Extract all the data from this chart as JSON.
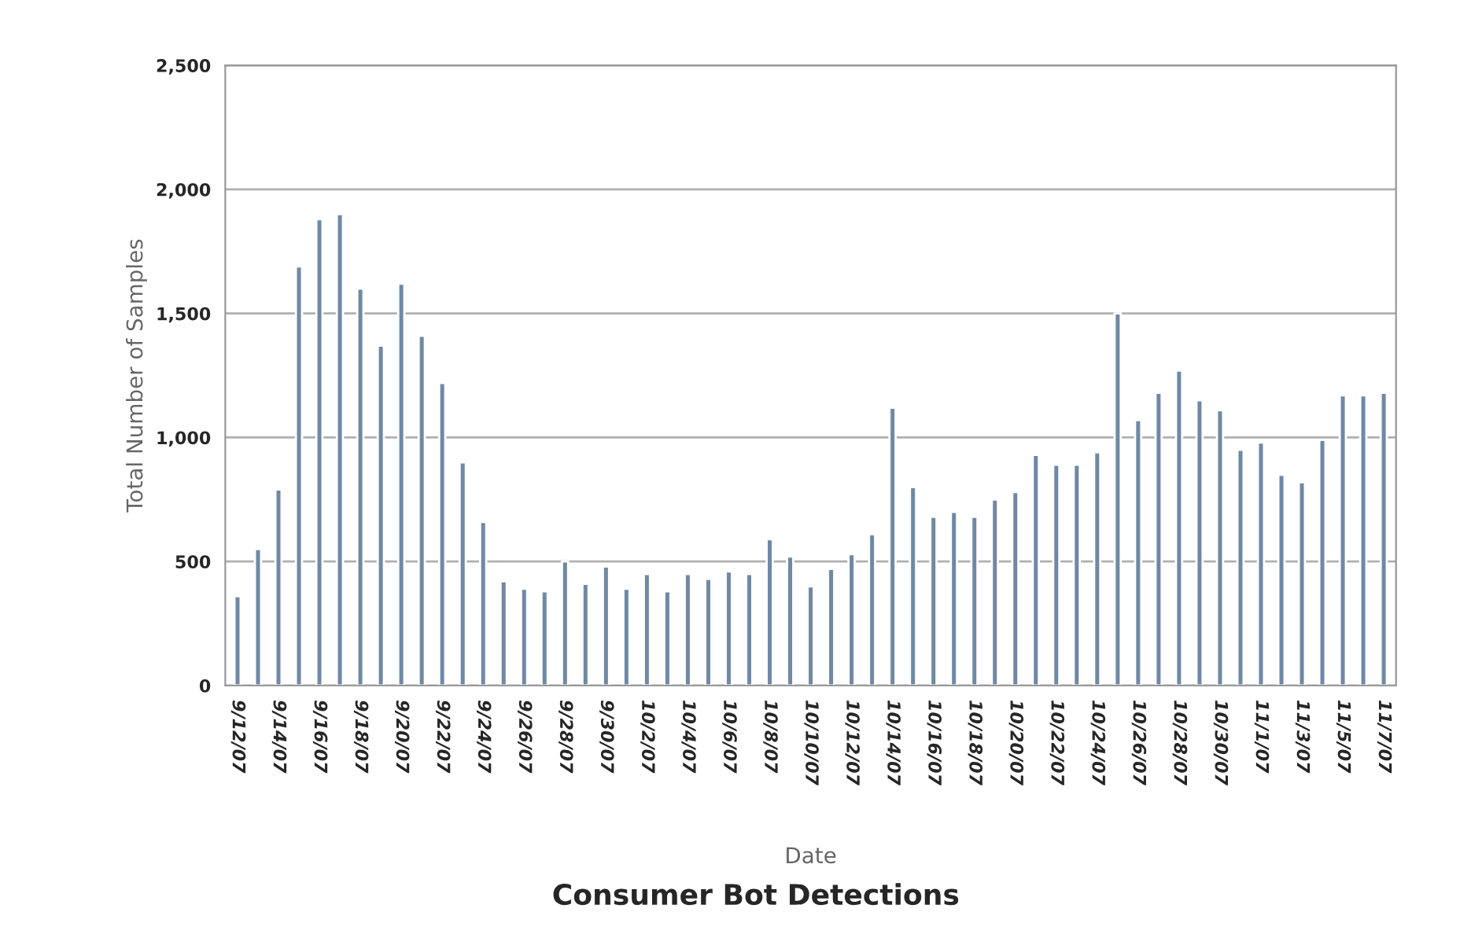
{
  "chart_data": {
    "type": "bar",
    "title": "Consumer Bot Detections",
    "xlabel": "Date",
    "ylabel": "Total Number of Samples",
    "categories": [
      "9/12/07",
      null,
      "9/14/07",
      null,
      "9/16/07",
      null,
      "9/18/07",
      null,
      "9/20/07",
      null,
      "9/22/07",
      null,
      "9/24/07",
      null,
      "9/26/07",
      null,
      "9/28/07",
      null,
      "9/30/07",
      null,
      "10/2/07",
      null,
      "10/4/07",
      null,
      "10/6/07",
      null,
      "10/8/07",
      null,
      "10/10/07",
      null,
      "10/12/07",
      null,
      "10/14/07",
      null,
      "10/16/07",
      null,
      "10/18/07",
      null,
      "10/20/07",
      null,
      "10/22/07",
      null,
      "10/24/07",
      null,
      "10/26/07",
      null,
      "10/28/07",
      null,
      "10/30/07",
      null,
      "11/1/07",
      null,
      "11/3/07",
      null,
      "11/5/07",
      null,
      "11/7/07"
    ],
    "values": [
      360,
      550,
      790,
      1690,
      1880,
      1900,
      1600,
      1370,
      1620,
      1410,
      1220,
      900,
      660,
      420,
      390,
      380,
      500,
      410,
      480,
      390,
      450,
      380,
      450,
      430,
      460,
      450,
      590,
      520,
      400,
      470,
      530,
      610,
      1120,
      800,
      680,
      700,
      680,
      750,
      780,
      930,
      890,
      890,
      940,
      1500,
      1070,
      1180,
      1270,
      1150,
      1110,
      950,
      980,
      850,
      820,
      990,
      1170,
      1170,
      1180
    ],
    "color": "#6f89a5",
    "ylim": [
      0,
      2500
    ],
    "yticks": [
      {
        "value": 0,
        "label": "0"
      },
      {
        "value": 500,
        "label": "500"
      },
      {
        "value": 1000,
        "label": "1,000"
      },
      {
        "value": 1500,
        "label": "1,500"
      },
      {
        "value": 2000,
        "label": "2,000"
      },
      {
        "value": 2500,
        "label": "2,500"
      }
    ],
    "grid": "y"
  }
}
